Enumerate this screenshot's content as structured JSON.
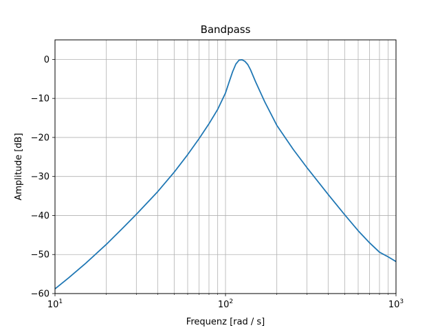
{
  "chart_data": {
    "type": "line",
    "title": "Bandpass",
    "xlabel": "Frequenz [rad / s]",
    "ylabel": "Amplitude [dB]",
    "xscale": "log",
    "xlim": [
      10,
      1000
    ],
    "ylim": [
      -60,
      5
    ],
    "grid": "both (major and minor, x); major (y)",
    "x_ticks": [
      {
        "value": 10,
        "base": "10",
        "exp": "1"
      },
      {
        "value": 100,
        "base": "10",
        "exp": "2"
      },
      {
        "value": 1000,
        "base": "10",
        "exp": "3"
      }
    ],
    "y_ticks": [
      {
        "value": 0,
        "label": "0"
      },
      {
        "value": -10,
        "label": "−10"
      },
      {
        "value": -20,
        "label": "−20"
      },
      {
        "value": -30,
        "label": "−30"
      },
      {
        "value": -40,
        "label": "−40"
      },
      {
        "value": -50,
        "label": "−50"
      },
      {
        "value": -60,
        "label": "−60"
      }
    ],
    "colors": {
      "line": "#1f77b4",
      "grid": "#b0b0b0"
    },
    "series": [
      {
        "x": [
          10,
          12,
          15,
          20,
          25,
          30,
          40,
          50,
          60,
          70,
          80,
          90,
          100,
          105,
          110,
          115,
          120,
          125,
          130,
          135,
          140,
          150,
          170,
          200,
          250,
          300,
          400,
          500,
          600,
          700,
          800,
          900,
          1000
        ],
        "y": [
          -58.8,
          -56.0,
          -52.4,
          -47.4,
          -43.2,
          -39.7,
          -33.9,
          -28.9,
          -24.4,
          -20.3,
          -16.5,
          -12.8,
          -8.6,
          -5.8,
          -3.2,
          -1.2,
          -0.2,
          -0.1,
          -0.5,
          -1.3,
          -2.6,
          -5.7,
          -10.9,
          -16.9,
          -23.1,
          -27.7,
          -34.6,
          -39.8,
          -43.9,
          -47.0,
          -49.4,
          -50.6,
          -51.8
        ]
      }
    ]
  }
}
